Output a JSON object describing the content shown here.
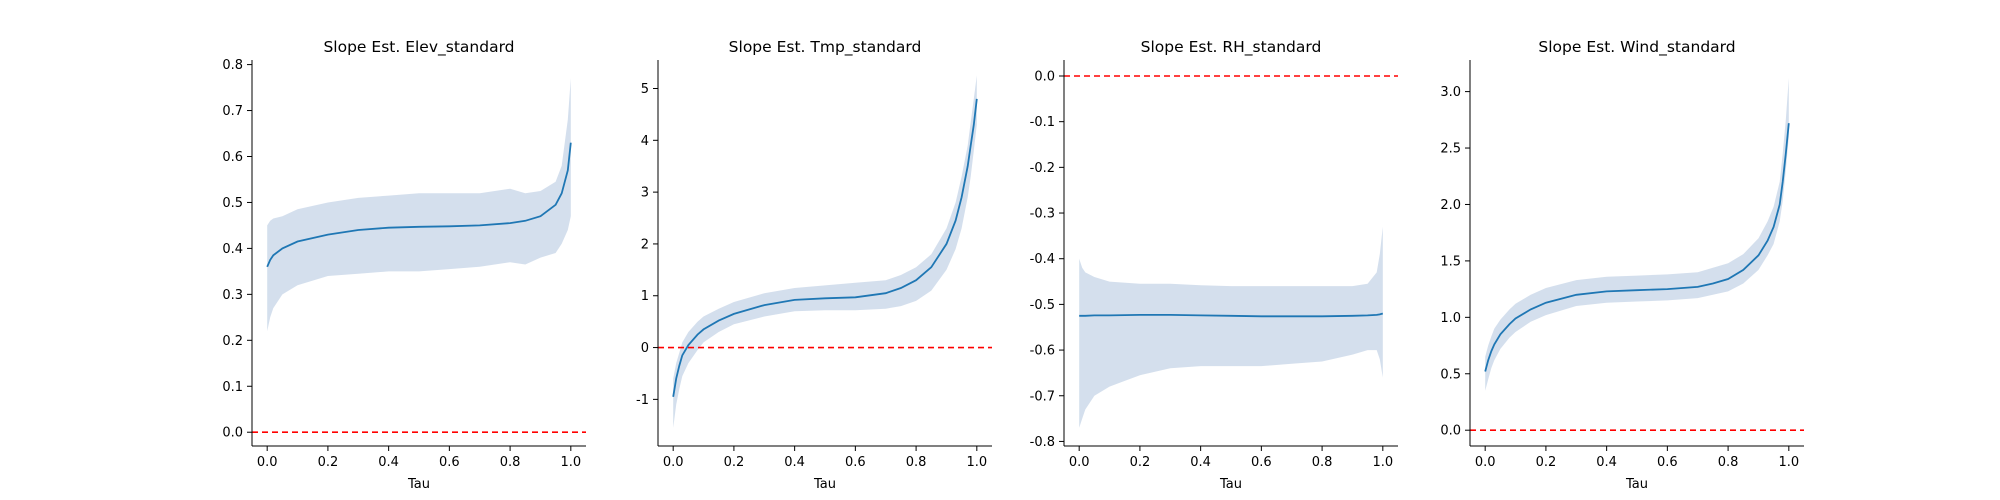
{
  "colors": {
    "line": "#1f77b4",
    "band": "#b0c4de",
    "zero_line": "#ff0000",
    "axis": "#000000"
  },
  "chart_data": [
    {
      "type": "line",
      "title": "Slope Est. Elev_standard",
      "xlabel": "Tau",
      "ylabel": "",
      "xlim": [
        -0.05,
        1.05
      ],
      "ylim": [
        -0.03,
        0.81
      ],
      "xticks": [
        "0.0",
        "0.2",
        "0.4",
        "0.6",
        "0.8",
        "1.0"
      ],
      "yticks": [
        "0.0",
        "0.1",
        "0.2",
        "0.3",
        "0.4",
        "0.5",
        "0.6",
        "0.7",
        "0.8"
      ],
      "reference_line": 0,
      "grid": false,
      "x": [
        0.0,
        0.01,
        0.02,
        0.05,
        0.1,
        0.2,
        0.3,
        0.4,
        0.5,
        0.6,
        0.7,
        0.8,
        0.85,
        0.9,
        0.95,
        0.97,
        0.99,
        1.0
      ],
      "estimate": [
        0.36,
        0.375,
        0.385,
        0.4,
        0.415,
        0.43,
        0.44,
        0.445,
        0.447,
        0.448,
        0.45,
        0.455,
        0.46,
        0.47,
        0.495,
        0.52,
        0.57,
        0.63
      ],
      "lower": [
        0.22,
        0.25,
        0.27,
        0.3,
        0.32,
        0.34,
        0.345,
        0.35,
        0.35,
        0.355,
        0.36,
        0.37,
        0.365,
        0.38,
        0.39,
        0.41,
        0.44,
        0.47
      ],
      "upper": [
        0.45,
        0.46,
        0.465,
        0.47,
        0.485,
        0.5,
        0.51,
        0.515,
        0.52,
        0.52,
        0.52,
        0.53,
        0.52,
        0.525,
        0.545,
        0.58,
        0.68,
        0.77
      ]
    },
    {
      "type": "line",
      "title": "Slope Est. Tmp_standard",
      "xlabel": "Tau",
      "ylabel": "",
      "xlim": [
        -0.05,
        1.05
      ],
      "ylim": [
        -1.9,
        5.55
      ],
      "xticks": [
        "0.0",
        "0.2",
        "0.4",
        "0.6",
        "0.8",
        "1.0"
      ],
      "yticks": [
        "-1",
        "0",
        "1",
        "2",
        "3",
        "4",
        "5"
      ],
      "reference_line": 0,
      "grid": false,
      "x": [
        0.0,
        0.01,
        0.02,
        0.03,
        0.05,
        0.08,
        0.1,
        0.15,
        0.2,
        0.3,
        0.4,
        0.5,
        0.6,
        0.7,
        0.75,
        0.8,
        0.85,
        0.9,
        0.93,
        0.95,
        0.97,
        0.98,
        0.99,
        1.0
      ],
      "estimate": [
        -0.95,
        -0.6,
        -0.35,
        -0.15,
        0.05,
        0.25,
        0.35,
        0.52,
        0.65,
        0.82,
        0.92,
        0.95,
        0.97,
        1.05,
        1.15,
        1.3,
        1.55,
        2.0,
        2.45,
        2.9,
        3.5,
        3.9,
        4.3,
        4.8
      ],
      "lower": [
        -1.55,
        -1.1,
        -0.8,
        -0.55,
        -0.3,
        -0.05,
        0.1,
        0.3,
        0.45,
        0.6,
        0.7,
        0.72,
        0.72,
        0.75,
        0.8,
        0.9,
        1.1,
        1.5,
        1.9,
        2.3,
        2.9,
        3.3,
        3.8,
        4.3
      ],
      "upper": [
        -0.6,
        -0.3,
        -0.1,
        0.1,
        0.3,
        0.5,
        0.6,
        0.75,
        0.88,
        1.05,
        1.15,
        1.2,
        1.25,
        1.3,
        1.4,
        1.55,
        1.8,
        2.3,
        2.8,
        3.3,
        3.9,
        4.35,
        4.8,
        5.25
      ]
    },
    {
      "type": "line",
      "title": "Slope Est. RH_standard",
      "xlabel": "Tau",
      "ylabel": "",
      "xlim": [
        -0.05,
        1.05
      ],
      "ylim": [
        -0.81,
        0.035
      ],
      "xticks": [
        "0.0",
        "0.2",
        "0.4",
        "0.6",
        "0.8",
        "1.0"
      ],
      "yticks": [
        "0.0",
        "-0.1",
        "-0.2",
        "-0.3",
        "-0.4",
        "-0.5",
        "-0.6",
        "-0.7",
        "-0.8"
      ],
      "reference_line": 0,
      "grid": false,
      "x": [
        0.0,
        0.01,
        0.02,
        0.05,
        0.1,
        0.2,
        0.3,
        0.4,
        0.5,
        0.6,
        0.7,
        0.8,
        0.9,
        0.95,
        0.98,
        0.99,
        1.0
      ],
      "estimate": [
        -0.525,
        -0.525,
        -0.525,
        -0.524,
        -0.524,
        -0.523,
        -0.523,
        -0.524,
        -0.525,
        -0.526,
        -0.526,
        -0.526,
        -0.525,
        -0.524,
        -0.523,
        -0.522,
        -0.52
      ],
      "lower": [
        -0.77,
        -0.75,
        -0.73,
        -0.7,
        -0.68,
        -0.655,
        -0.64,
        -0.635,
        -0.635,
        -0.635,
        -0.63,
        -0.625,
        -0.61,
        -0.6,
        -0.6,
        -0.62,
        -0.66
      ],
      "upper": [
        -0.4,
        -0.42,
        -0.43,
        -0.44,
        -0.45,
        -0.455,
        -0.455,
        -0.458,
        -0.46,
        -0.46,
        -0.46,
        -0.46,
        -0.46,
        -0.455,
        -0.43,
        -0.39,
        -0.33
      ]
    },
    {
      "type": "line",
      "title": "Slope Est. Wind_standard",
      "xlabel": "Tau",
      "ylabel": "",
      "xlim": [
        -0.05,
        1.05
      ],
      "ylim": [
        -0.14,
        3.28
      ],
      "xticks": [
        "0.0",
        "0.2",
        "0.4",
        "0.6",
        "0.8",
        "1.0"
      ],
      "yticks": [
        "0.0",
        "0.5",
        "1.0",
        "1.5",
        "2.0",
        "2.5",
        "3.0"
      ],
      "reference_line": 0,
      "grid": false,
      "x": [
        0.0,
        0.01,
        0.02,
        0.03,
        0.05,
        0.08,
        0.1,
        0.15,
        0.2,
        0.3,
        0.4,
        0.5,
        0.6,
        0.7,
        0.75,
        0.8,
        0.85,
        0.9,
        0.93,
        0.95,
        0.97,
        0.98,
        0.99,
        1.0
      ],
      "estimate": [
        0.52,
        0.62,
        0.7,
        0.76,
        0.85,
        0.94,
        0.99,
        1.07,
        1.13,
        1.2,
        1.23,
        1.24,
        1.25,
        1.27,
        1.3,
        1.34,
        1.42,
        1.55,
        1.68,
        1.8,
        2.0,
        2.2,
        2.45,
        2.72
      ],
      "lower": [
        0.35,
        0.45,
        0.55,
        0.62,
        0.72,
        0.82,
        0.87,
        0.96,
        1.02,
        1.1,
        1.13,
        1.14,
        1.15,
        1.17,
        1.2,
        1.23,
        1.3,
        1.42,
        1.55,
        1.65,
        1.85,
        2.03,
        2.3,
        2.6
      ],
      "upper": [
        0.65,
        0.75,
        0.83,
        0.9,
        0.98,
        1.07,
        1.12,
        1.2,
        1.26,
        1.33,
        1.36,
        1.37,
        1.38,
        1.4,
        1.44,
        1.48,
        1.56,
        1.7,
        1.85,
        1.98,
        2.2,
        2.45,
        2.75,
        3.12
      ]
    }
  ]
}
